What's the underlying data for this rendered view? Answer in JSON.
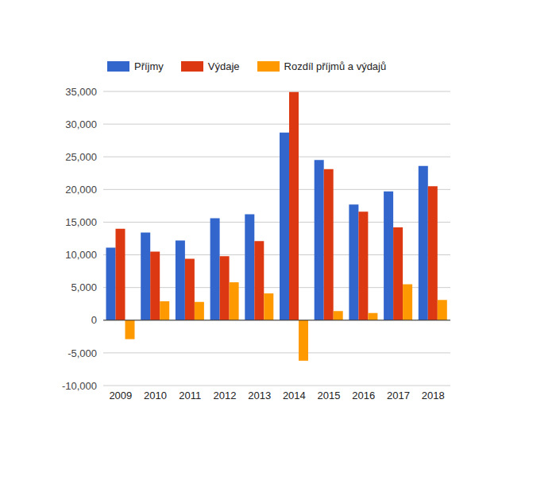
{
  "chart_data": {
    "type": "bar",
    "categories": [
      "2009",
      "2010",
      "2011",
      "2012",
      "2013",
      "2014",
      "2015",
      "2016",
      "2017",
      "2018"
    ],
    "series": [
      {
        "name": "Příjmy",
        "color": "#3366cc",
        "values": [
          11100,
          13400,
          12200,
          15600,
          16200,
          28700,
          24500,
          17700,
          19700,
          23600
        ]
      },
      {
        "name": "Výdaje",
        "color": "#dc3912",
        "values": [
          14000,
          10500,
          9400,
          9800,
          12100,
          34900,
          23100,
          16600,
          14200,
          20500
        ]
      },
      {
        "name": "Rozdíl příjmů a výdajů",
        "color": "#ff9900",
        "values": [
          -2900,
          2900,
          2800,
          5800,
          4100,
          -6200,
          1400,
          1100,
          5500,
          3100
        ]
      }
    ],
    "ylim": [
      -10000,
      35000
    ],
    "yticks": [
      {
        "value": -10000,
        "label": "-10,000"
      },
      {
        "value": -5000,
        "label": "-5,000"
      },
      0,
      {
        "value": 5000,
        "label": "5,000"
      },
      {
        "value": 10000,
        "label": "10,000"
      },
      {
        "value": 15000,
        "label": "15,000"
      },
      {
        "value": 20000,
        "label": "20,000"
      },
      {
        "value": 25000,
        "label": "25,000"
      },
      {
        "value": 30000,
        "label": "30,000"
      },
      {
        "value": 35000,
        "label": "35,000"
      }
    ],
    "grid": true,
    "legend": "top"
  }
}
